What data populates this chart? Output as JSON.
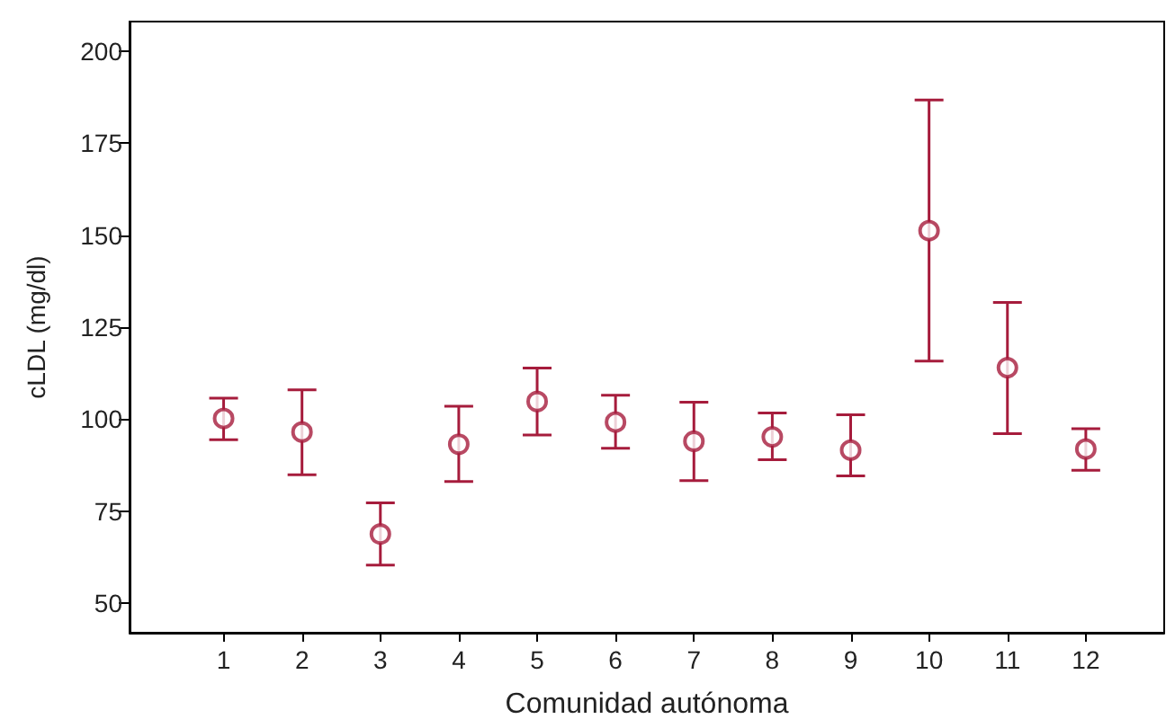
{
  "chart_data": {
    "type": "scatter",
    "xlabel": "Comunidad autónoma",
    "ylabel": "cLDL (mg/dl)",
    "x": [
      1,
      2,
      3,
      4,
      5,
      6,
      7,
      8,
      9,
      10,
      11,
      12
    ],
    "values": [
      100.2,
      96.5,
      68.8,
      93.2,
      104.8,
      99.2,
      94.0,
      95.2,
      91.6,
      151.2,
      114.0,
      91.9
    ],
    "errors": [
      [
        94.4,
        105.7
      ],
      [
        84.9,
        108.0
      ],
      [
        60.4,
        77.3
      ],
      [
        83.1,
        103.5
      ],
      [
        95.7,
        113.9
      ],
      [
        92.1,
        106.5
      ],
      [
        83.3,
        104.6
      ],
      [
        89.0,
        101.7
      ],
      [
        84.6,
        101.2
      ],
      [
        115.8,
        186.7
      ],
      [
        96.1,
        131.7
      ],
      [
        86.1,
        97.4
      ]
    ],
    "color": "#a61c3c",
    "marker": "circle",
    "xlim": [
      -0.2,
      13
    ],
    "xticks": [
      1,
      2,
      3,
      4,
      5,
      6,
      7,
      8,
      9,
      10,
      11,
      12
    ],
    "ylim": [
      42,
      208
    ],
    "yticks": [
      50,
      75,
      100,
      125,
      150,
      175,
      200
    ],
    "grid": false
  }
}
